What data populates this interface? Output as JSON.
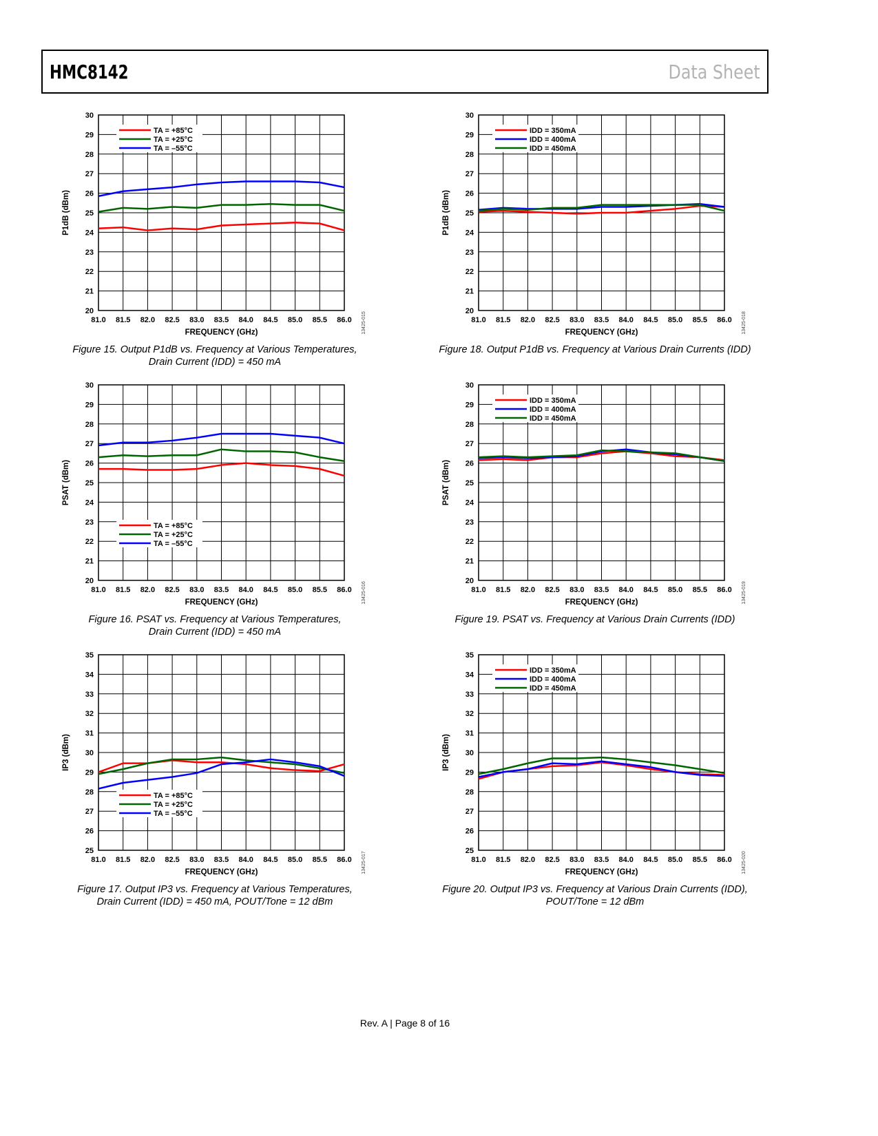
{
  "header": {
    "title": "HMC8142",
    "doc_type": "Data Sheet"
  },
  "footer": {
    "text": "Rev. A | Page 8 of 16"
  },
  "colors": {
    "red": "#ff0000",
    "green": "#006400",
    "blue": "#0000ff"
  },
  "chart_data": [
    {
      "type": "line",
      "id": "fig15",
      "figure_code": "13425-015",
      "caption": [
        "Figure 15. Output P1dB vs. Frequency at Various Temperatures,",
        "Drain Current (IDD) = 450 mA"
      ],
      "xlabel": "FREQUENCY (GHz)",
      "ylabel": "P1dB (dBm)",
      "xlim": [
        81.0,
        86.0
      ],
      "ylim": [
        20,
        30
      ],
      "grid": true,
      "legend_position": "upper-left",
      "x": [
        81.0,
        81.5,
        82.0,
        82.5,
        83.0,
        83.5,
        84.0,
        84.5,
        85.0,
        85.5,
        86.0
      ],
      "xticks": [
        "81.0",
        "81.5",
        "82.0",
        "82.5",
        "83.0",
        "83.5",
        "84.0",
        "84.5",
        "85.0",
        "85.5",
        "86.0"
      ],
      "yticks": [
        "20",
        "21",
        "22",
        "23",
        "24",
        "25",
        "26",
        "27",
        "28",
        "29",
        "30"
      ],
      "series": [
        {
          "name": "TA = +85°C",
          "color": "#ff0000",
          "values": [
            24.2,
            24.25,
            24.1,
            24.2,
            24.15,
            24.35,
            24.4,
            24.45,
            24.5,
            24.45,
            24.1
          ]
        },
        {
          "name": "TA = +25°C",
          "color": "#006400",
          "values": [
            25.05,
            25.25,
            25.2,
            25.3,
            25.25,
            25.4,
            25.4,
            25.45,
            25.4,
            25.4,
            25.1
          ]
        },
        {
          "name": "TA = –55°C",
          "color": "#0000ff",
          "values": [
            25.85,
            26.1,
            26.2,
            26.3,
            26.45,
            26.55,
            26.6,
            26.6,
            26.6,
            26.55,
            26.3
          ]
        }
      ]
    },
    {
      "type": "line",
      "id": "fig18",
      "figure_code": "13425-018",
      "caption": [
        "Figure 18. Output P1dB vs. Frequency at Various Drain Currents (IDD)"
      ],
      "xlabel": "FREQUENCY (GHz)",
      "ylabel": "P1dB (dBm)",
      "xlim": [
        81.0,
        86.0
      ],
      "ylim": [
        20,
        30
      ],
      "grid": true,
      "legend_position": "upper-left",
      "x": [
        81.0,
        81.5,
        82.0,
        82.5,
        83.0,
        83.5,
        84.0,
        84.5,
        85.0,
        85.5,
        86.0
      ],
      "xticks": [
        "81.0",
        "81.5",
        "82.0",
        "82.5",
        "83.0",
        "83.5",
        "84.0",
        "84.5",
        "85.0",
        "85.5",
        "86.0"
      ],
      "yticks": [
        "20",
        "21",
        "22",
        "23",
        "24",
        "25",
        "26",
        "27",
        "28",
        "29",
        "30"
      ],
      "series": [
        {
          "name": "IDD = 350mA",
          "color": "#ff0000",
          "values": [
            25.05,
            25.1,
            25.05,
            25.0,
            24.95,
            25.0,
            25.0,
            25.1,
            25.2,
            25.35,
            25.3
          ]
        },
        {
          "name": "IDD = 400mA",
          "color": "#0000ff",
          "values": [
            25.15,
            25.25,
            25.2,
            25.2,
            25.2,
            25.3,
            25.3,
            25.35,
            25.4,
            25.45,
            25.3
          ]
        },
        {
          "name": "IDD = 450mA",
          "color": "#006400",
          "values": [
            25.1,
            25.2,
            25.15,
            25.25,
            25.25,
            25.4,
            25.4,
            25.4,
            25.4,
            25.4,
            25.1
          ]
        }
      ]
    },
    {
      "type": "line",
      "id": "fig16",
      "figure_code": "13425-016",
      "caption": [
        "Figure 16. PSAT vs. Frequency at Various Temperatures,",
        "Drain Current (IDD) = 450 mA"
      ],
      "xlabel": "FREQUENCY (GHz)",
      "ylabel": "PSAT (dBm)",
      "xlim": [
        81.0,
        86.0
      ],
      "ylim": [
        20,
        30
      ],
      "grid": true,
      "legend_position": "lower-left",
      "x": [
        81.0,
        81.5,
        82.0,
        82.5,
        83.0,
        83.5,
        84.0,
        84.5,
        85.0,
        85.5,
        86.0
      ],
      "xticks": [
        "81.0",
        "81.5",
        "82.0",
        "82.5",
        "83.0",
        "83.5",
        "84.0",
        "84.5",
        "85.0",
        "85.5",
        "86.0"
      ],
      "yticks": [
        "20",
        "21",
        "22",
        "23",
        "24",
        "25",
        "26",
        "27",
        "28",
        "29",
        "30"
      ],
      "series": [
        {
          "name": "TA = +85°C",
          "color": "#ff0000",
          "values": [
            25.7,
            25.7,
            25.65,
            25.65,
            25.7,
            25.9,
            26.0,
            25.9,
            25.85,
            25.7,
            25.35
          ]
        },
        {
          "name": "TA = +25°C",
          "color": "#006400",
          "values": [
            26.3,
            26.4,
            26.35,
            26.4,
            26.4,
            26.7,
            26.6,
            26.6,
            26.55,
            26.3,
            26.1
          ]
        },
        {
          "name": "TA = –55°C",
          "color": "#0000ff",
          "values": [
            26.9,
            27.05,
            27.05,
            27.15,
            27.3,
            27.5,
            27.5,
            27.5,
            27.4,
            27.3,
            27.0
          ]
        }
      ]
    },
    {
      "type": "line",
      "id": "fig19",
      "figure_code": "13425-019",
      "caption": [
        "Figure 19. PSAT vs. Frequency at Various Drain Currents (IDD)"
      ],
      "xlabel": "FREQUENCY (GHz)",
      "ylabel": "PSAT (dBm)",
      "xlim": [
        81.0,
        86.0
      ],
      "ylim": [
        20,
        30
      ],
      "grid": true,
      "legend_position": "upper-left",
      "x": [
        81.0,
        81.5,
        82.0,
        82.5,
        83.0,
        83.5,
        84.0,
        84.5,
        85.0,
        85.5,
        86.0
      ],
      "xticks": [
        "81.0",
        "81.5",
        "82.0",
        "82.5",
        "83.0",
        "83.5",
        "84.0",
        "84.5",
        "85.0",
        "85.5",
        "86.0"
      ],
      "yticks": [
        "20",
        "21",
        "22",
        "23",
        "24",
        "25",
        "26",
        "27",
        "28",
        "29",
        "30"
      ],
      "series": [
        {
          "name": "IDD = 350mA",
          "color": "#ff0000",
          "values": [
            26.15,
            26.2,
            26.15,
            26.3,
            26.3,
            26.5,
            26.6,
            26.5,
            26.35,
            26.3,
            26.15
          ]
        },
        {
          "name": "IDD = 400mA",
          "color": "#0000ff",
          "values": [
            26.25,
            26.3,
            26.25,
            26.3,
            26.35,
            26.6,
            26.7,
            26.55,
            26.45,
            26.3,
            26.1
          ]
        },
        {
          "name": "IDD = 450mA",
          "color": "#006400",
          "values": [
            26.3,
            26.35,
            26.3,
            26.35,
            26.4,
            26.65,
            26.6,
            26.55,
            26.5,
            26.3,
            26.1
          ]
        }
      ]
    },
    {
      "type": "line",
      "id": "fig17",
      "figure_code": "13425-017",
      "caption": [
        "Figure 17. Output IP3 vs. Frequency at Various Temperatures,",
        "Drain Current (IDD) = 450 mA, POUT/Tone = 12 dBm"
      ],
      "xlabel": "FREQUENCY (GHz)",
      "ylabel": "IP3 (dBm)",
      "xlim": [
        81.0,
        86.0
      ],
      "ylim": [
        25,
        35
      ],
      "grid": true,
      "legend_position": "lower-left",
      "x": [
        81.0,
        81.5,
        82.0,
        82.5,
        83.0,
        83.5,
        84.0,
        84.5,
        85.0,
        85.5,
        86.0
      ],
      "xticks": [
        "81.0",
        "81.5",
        "82.0",
        "82.5",
        "83.0",
        "83.5",
        "84.0",
        "84.5",
        "85.0",
        "85.5",
        "86.0"
      ],
      "yticks": [
        "25",
        "26",
        "27",
        "28",
        "29",
        "30",
        "31",
        "32",
        "33",
        "34",
        "35"
      ],
      "series": [
        {
          "name": "TA = +85°C",
          "color": "#ff0000",
          "values": [
            29.0,
            29.45,
            29.45,
            29.6,
            29.5,
            29.5,
            29.4,
            29.2,
            29.1,
            29.05,
            29.4
          ]
        },
        {
          "name": "TA = +25°C",
          "color": "#006400",
          "values": [
            28.9,
            29.15,
            29.45,
            29.65,
            29.65,
            29.75,
            29.6,
            29.5,
            29.4,
            29.2,
            28.95
          ]
        },
        {
          "name": "TA = –55°C",
          "color": "#0000ff",
          "values": [
            28.15,
            28.45,
            28.6,
            28.75,
            28.95,
            29.4,
            29.5,
            29.65,
            29.5,
            29.3,
            28.8
          ]
        }
      ]
    },
    {
      "type": "line",
      "id": "fig20",
      "figure_code": "13425-020",
      "caption": [
        "Figure 20. Output IP3 vs. Frequency at Various Drain Currents (IDD),",
        "POUT/Tone = 12 dBm"
      ],
      "xlabel": "FREQUENCY (GHz)",
      "ylabel": "IP3 (dBm)",
      "xlim": [
        81.0,
        86.0
      ],
      "ylim": [
        25,
        35
      ],
      "grid": true,
      "legend_position": "upper-left",
      "x": [
        81.0,
        81.5,
        82.0,
        82.5,
        83.0,
        83.5,
        84.0,
        84.5,
        85.0,
        85.5,
        86.0
      ],
      "xticks": [
        "81.0",
        "81.5",
        "82.0",
        "82.5",
        "83.0",
        "83.5",
        "84.0",
        "84.5",
        "85.0",
        "85.5",
        "86.0"
      ],
      "yticks": [
        "25",
        "26",
        "27",
        "28",
        "29",
        "30",
        "31",
        "32",
        "33",
        "34",
        "35"
      ],
      "series": [
        {
          "name": "IDD = 350mA",
          "color": "#ff0000",
          "values": [
            28.65,
            29.0,
            29.15,
            29.3,
            29.35,
            29.5,
            29.35,
            29.15,
            29.0,
            28.9,
            28.85
          ]
        },
        {
          "name": "IDD = 400mA",
          "color": "#0000ff",
          "values": [
            28.75,
            29.0,
            29.15,
            29.45,
            29.4,
            29.55,
            29.4,
            29.25,
            29.0,
            28.85,
            28.8
          ]
        },
        {
          "name": "IDD = 450mA",
          "color": "#006400",
          "values": [
            28.9,
            29.15,
            29.45,
            29.7,
            29.7,
            29.75,
            29.65,
            29.5,
            29.35,
            29.15,
            28.95
          ]
        }
      ]
    }
  ]
}
